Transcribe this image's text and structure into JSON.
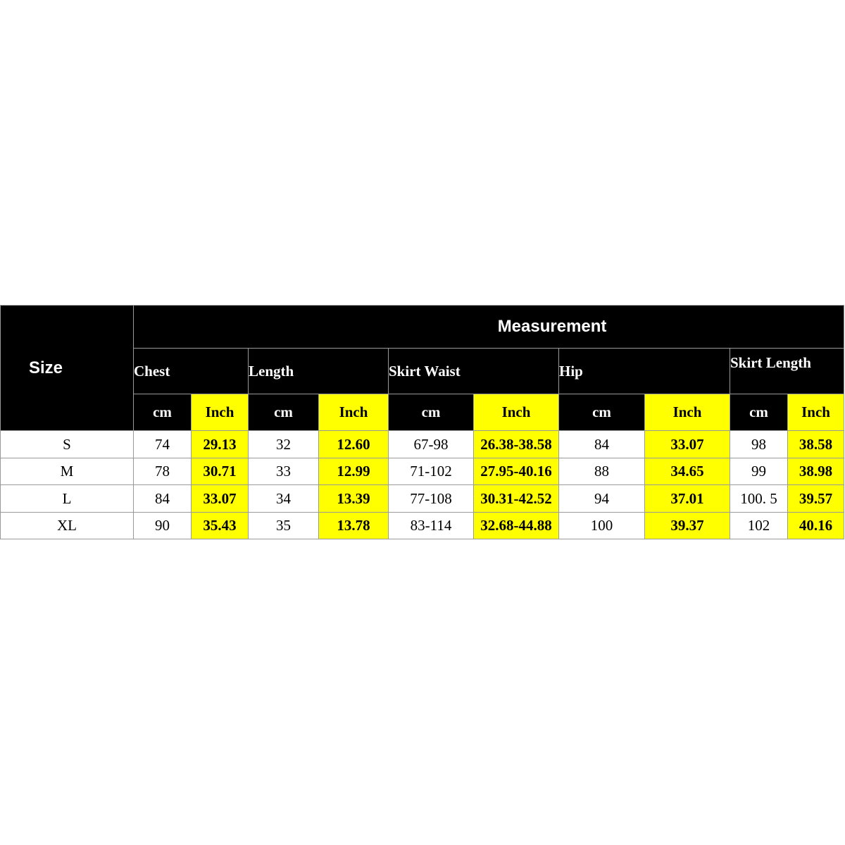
{
  "header": {
    "size_label": "Size",
    "measurement_label": "Measurement"
  },
  "groups": [
    "Chest",
    "Length",
    "Skirt  Waist",
    "Hip",
    "Skirt Length"
  ],
  "units": [
    "cm",
    "Inch",
    "cm",
    "Inch",
    "cm",
    "Inch",
    "cm",
    "Inch",
    "cm",
    "Inch"
  ],
  "rows": [
    {
      "size": "S",
      "values": [
        "74",
        "29.13",
        "32",
        "12.60",
        "67-98",
        "26.38-38.58",
        "84",
        "33.07",
        "98",
        "38.58"
      ]
    },
    {
      "size": "M",
      "values": [
        "78",
        "30.71",
        "33",
        "12.99",
        "71-102",
        "27.95-40.16",
        "88",
        "34.65",
        "99",
        "38.98"
      ]
    },
    {
      "size": "L",
      "values": [
        "84",
        "33.07",
        "34",
        "13.39",
        "77-108",
        "30.31-42.52",
        "94",
        "37.01",
        "100. 5",
        "39.57"
      ]
    },
    {
      "size": "XL",
      "values": [
        "90",
        "35.43",
        "35",
        "13.78",
        "83-114",
        "32.68-44.88",
        "100",
        "39.37",
        "102",
        "40.16"
      ]
    }
  ],
  "colors": {
    "header_bg": "#000000",
    "inch_bg": "#ffff00",
    "body_bg": "#ffffff"
  }
}
